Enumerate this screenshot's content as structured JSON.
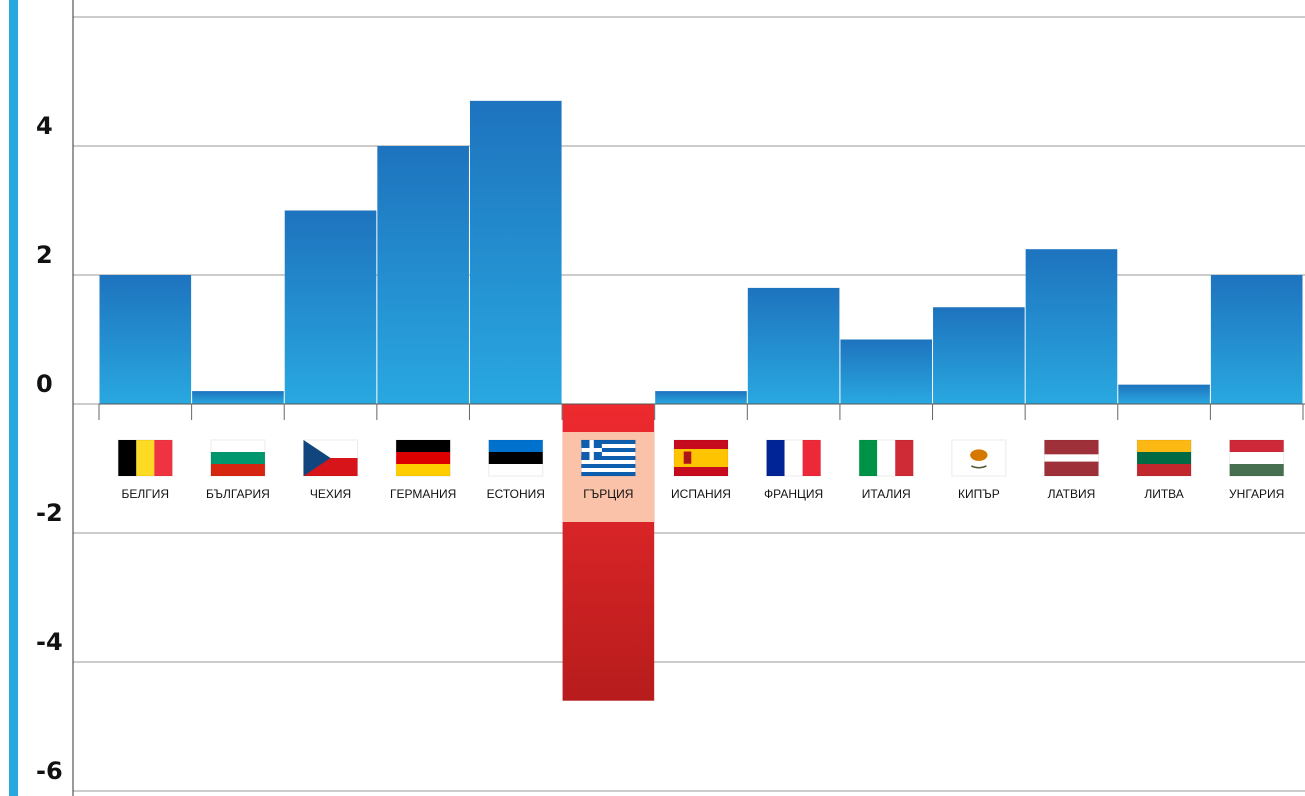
{
  "chart_data": {
    "type": "bar",
    "title": "",
    "xlabel": "",
    "ylabel": "",
    "ylim": [
      -6.2,
      6.2
    ],
    "yticks": [
      4,
      2,
      0,
      -2,
      -4,
      -6
    ],
    "grid": true,
    "categories": [
      "БЕЛГИЯ",
      "БЪЛГАРИЯ",
      "ЧЕХИЯ",
      "ГЕРМАНИЯ",
      "ЕСТОНИЯ",
      "ГЪРЦИЯ",
      "ИСПАНИЯ",
      "ФРАНЦИЯ",
      "ИТАЛИЯ",
      "КИПЪР",
      "ЛАТВИЯ",
      "ЛИТВА",
      "УНГАРИЯ"
    ],
    "values": [
      2.0,
      0.2,
      3.0,
      4.0,
      4.7,
      -4.6,
      0.2,
      1.8,
      1.0,
      1.5,
      2.4,
      0.3,
      2.0
    ],
    "highlight_category": "ГЪРЦИЯ",
    "colors": {
      "positive_top": "#1e73be",
      "positive_bottom": "#29a8e0",
      "negative_top": "#ee2a2f",
      "negative_bottom": "#b71c1c",
      "highlight_label_bg": "#f9c2a9",
      "axis_bar": "#29a8e0",
      "grid": "#9a9a9a"
    },
    "flags": [
      "belgium-flag-icon",
      "bulgaria-flag-icon",
      "czechia-flag-icon",
      "germany-flag-icon",
      "estonia-flag-icon",
      "greece-flag-icon",
      "spain-flag-icon",
      "france-flag-icon",
      "italy-flag-icon",
      "cyprus-flag-icon",
      "latvia-flag-icon",
      "lithuania-flag-icon",
      "hungary-flag-icon"
    ]
  }
}
